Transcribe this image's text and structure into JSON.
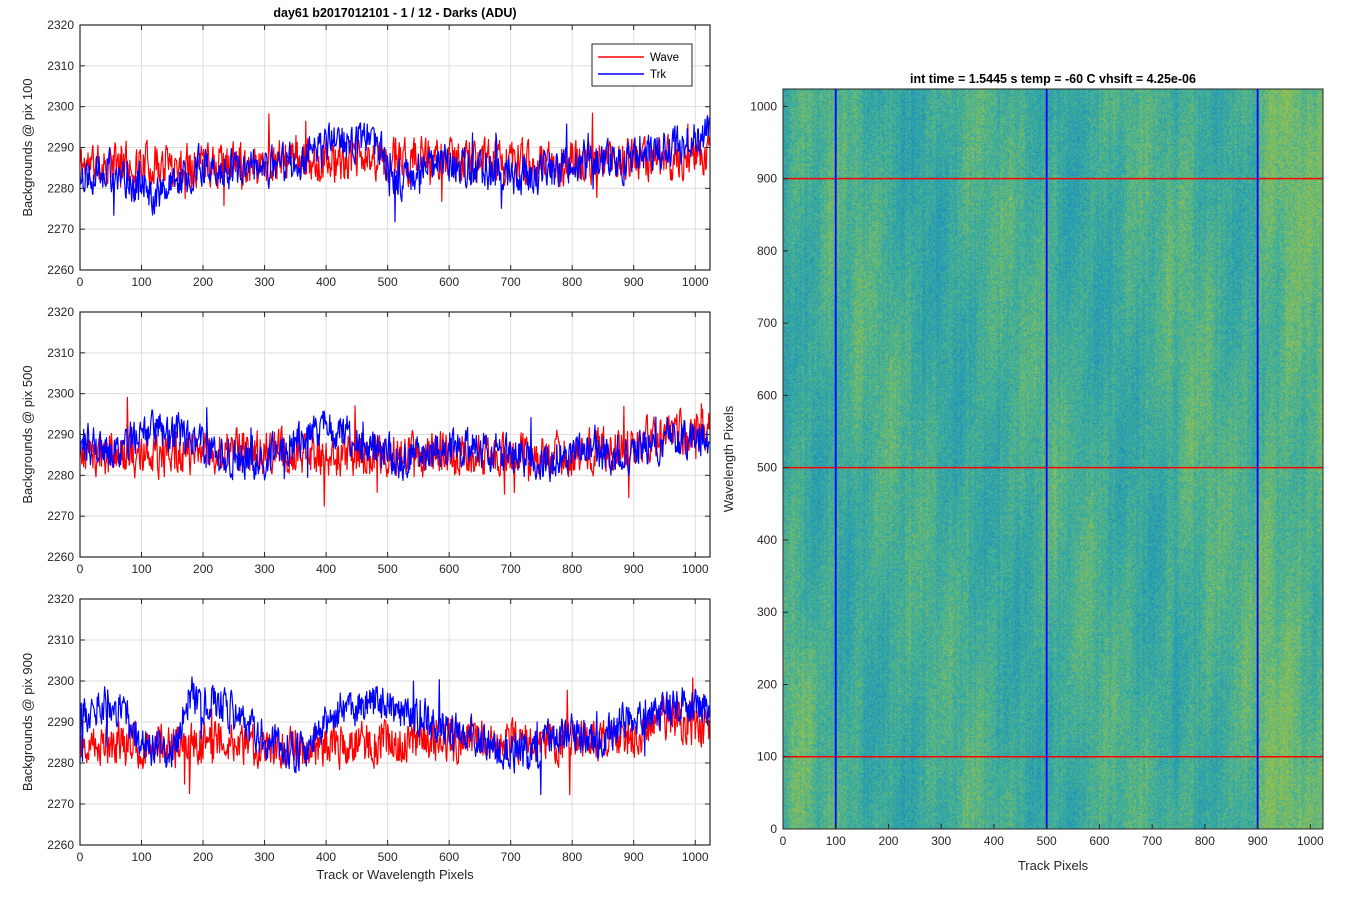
{
  "chart_data": [
    {
      "type": "line",
      "id": "p100",
      "title": "day61 b2017012101 - 1 / 12 - Darks (ADU)",
      "ylabel": "Backgrounds @ pix 100",
      "xlabel": "",
      "xlim": [
        0,
        1024
      ],
      "ylim": [
        2260,
        2320
      ],
      "xticks": [
        0,
        100,
        200,
        300,
        400,
        500,
        600,
        700,
        800,
        900,
        1000
      ],
      "yticks": [
        2260,
        2270,
        2280,
        2290,
        2300,
        2310,
        2320
      ],
      "xtick_labels": [
        "0",
        "100",
        "200",
        "300",
        "400",
        "500",
        "600",
        "700",
        "800",
        "900",
        "1000"
      ],
      "ytick_labels": [
        "2260",
        "2270",
        "2280",
        "2290",
        "2300",
        "2310",
        "2320"
      ],
      "grid": true,
      "legend": {
        "placement": "top-right",
        "entries": [
          "Wave",
          "Trk"
        ]
      },
      "series": [
        {
          "name": "Wave",
          "color": "#ff0000",
          "base": [
            [
              0,
              2286
            ],
            [
              128,
              2286
            ],
            [
              256,
              2286
            ],
            [
              384,
              2287
            ],
            [
              512,
              2287
            ],
            [
              640,
              2287
            ],
            [
              768,
              2286
            ],
            [
              896,
              2287
            ],
            [
              1024,
              2288
            ]
          ],
          "noise": 5.5,
          "seed": 11
        },
        {
          "name": "Trk",
          "color": "#0000ff",
          "base": [
            [
              0,
              2283
            ],
            [
              40,
              2285
            ],
            [
              80,
              2282
            ],
            [
              120,
              2279
            ],
            [
              150,
              2280
            ],
            [
              200,
              2286
            ],
            [
              260,
              2284
            ],
            [
              300,
              2285
            ],
            [
              360,
              2287
            ],
            [
              420,
              2292
            ],
            [
              480,
              2291
            ],
            [
              520,
              2282
            ],
            [
              560,
              2285
            ],
            [
              600,
              2286
            ],
            [
              650,
              2284
            ],
            [
              700,
              2283
            ],
            [
              760,
              2284
            ],
            [
              820,
              2287
            ],
            [
              880,
              2286
            ],
            [
              960,
              2290
            ],
            [
              1024,
              2293
            ]
          ],
          "noise": 5,
          "seed": 22
        }
      ]
    },
    {
      "type": "line",
      "id": "p500",
      "title": "",
      "ylabel": "Backgrounds @ pix 500",
      "xlabel": "",
      "xlim": [
        0,
        1024
      ],
      "ylim": [
        2260,
        2320
      ],
      "xticks": [
        0,
        100,
        200,
        300,
        400,
        500,
        600,
        700,
        800,
        900,
        1000
      ],
      "yticks": [
        2260,
        2270,
        2280,
        2290,
        2300,
        2310,
        2320
      ],
      "xtick_labels": [
        "0",
        "100",
        "200",
        "300",
        "400",
        "500",
        "600",
        "700",
        "800",
        "900",
        "1000"
      ],
      "ytick_labels": [
        "2260",
        "2270",
        "2280",
        "2290",
        "2300",
        "2310",
        "2320"
      ],
      "grid": true,
      "series": [
        {
          "name": "Wave",
          "color": "#ff0000",
          "base": [
            [
              0,
              2285
            ],
            [
              128,
              2285
            ],
            [
              256,
              2286
            ],
            [
              384,
              2285
            ],
            [
              512,
              2285
            ],
            [
              640,
              2285
            ],
            [
              768,
              2285
            ],
            [
              896,
              2287
            ],
            [
              960,
              2291
            ],
            [
              1024,
              2290
            ]
          ],
          "noise": 5.5,
          "seed": 33
        },
        {
          "name": "Trk",
          "color": "#0000ff",
          "base": [
            [
              0,
              2288
            ],
            [
              60,
              2286
            ],
            [
              100,
              2291
            ],
            [
              160,
              2290
            ],
            [
              220,
              2285
            ],
            [
              280,
              2283
            ],
            [
              340,
              2287
            ],
            [
              400,
              2292
            ],
            [
              460,
              2288
            ],
            [
              520,
              2284
            ],
            [
              580,
              2286
            ],
            [
              640,
              2287
            ],
            [
              700,
              2285
            ],
            [
              760,
              2283
            ],
            [
              820,
              2286
            ],
            [
              880,
              2285
            ],
            [
              960,
              2289
            ],
            [
              1024,
              2289
            ]
          ],
          "noise": 5,
          "seed": 44
        }
      ]
    },
    {
      "type": "line",
      "id": "p900",
      "title": "",
      "ylabel": "Backgrounds @ pix 900",
      "xlabel": "Track or Wavelength Pixels",
      "xlim": [
        0,
        1024
      ],
      "ylim": [
        2260,
        2320
      ],
      "xticks": [
        0,
        100,
        200,
        300,
        400,
        500,
        600,
        700,
        800,
        900,
        1000
      ],
      "yticks": [
        2260,
        2270,
        2280,
        2290,
        2300,
        2310,
        2320
      ],
      "xtick_labels": [
        "0",
        "100",
        "200",
        "300",
        "400",
        "500",
        "600",
        "700",
        "800",
        "900",
        "1000"
      ],
      "ytick_labels": [
        "2260",
        "2270",
        "2280",
        "2290",
        "2300",
        "2310",
        "2320"
      ],
      "grid": true,
      "series": [
        {
          "name": "Wave",
          "color": "#ff0000",
          "base": [
            [
              0,
              2285
            ],
            [
              128,
              2284
            ],
            [
              256,
              2285
            ],
            [
              384,
              2284
            ],
            [
              512,
              2285
            ],
            [
              640,
              2286
            ],
            [
              768,
              2285
            ],
            [
              896,
              2286
            ],
            [
              960,
              2292
            ],
            [
              1024,
              2287
            ]
          ],
          "noise": 5.5,
          "seed": 55
        },
        {
          "name": "Trk",
          "color": "#0000ff",
          "base": [
            [
              0,
              2291
            ],
            [
              50,
              2296
            ],
            [
              100,
              2285
            ],
            [
              150,
              2282
            ],
            [
              180,
              2297
            ],
            [
              240,
              2293
            ],
            [
              300,
              2286
            ],
            [
              360,
              2283
            ],
            [
              420,
              2293
            ],
            [
              480,
              2295
            ],
            [
              540,
              2292
            ],
            [
              600,
              2288
            ],
            [
              660,
              2284
            ],
            [
              720,
              2282
            ],
            [
              780,
              2287
            ],
            [
              840,
              2286
            ],
            [
              900,
              2291
            ],
            [
              960,
              2294
            ],
            [
              1024,
              2293
            ]
          ],
          "noise": 5,
          "seed": 66
        }
      ]
    },
    {
      "type": "heatmap",
      "id": "image",
      "title": "int time = 1.5445 s    temp = -60 C    vhsift = 4.25e-06",
      "xlabel": "Track Pixels",
      "ylabel": "Wavelength Pixels",
      "xlim": [
        0,
        1024
      ],
      "ylim": [
        0,
        1024
      ],
      "xticks": [
        0,
        100,
        200,
        300,
        400,
        500,
        600,
        700,
        800,
        900,
        1000
      ],
      "yticks": [
        0,
        100,
        200,
        300,
        400,
        500,
        600,
        700,
        800,
        900,
        1000
      ],
      "xtick_labels": [
        "0",
        "100",
        "200",
        "300",
        "400",
        "500",
        "600",
        "700",
        "800",
        "900",
        "1000"
      ],
      "ytick_labels": [
        "0",
        "100",
        "200",
        "300",
        "400",
        "500",
        "600",
        "700",
        "800",
        "900",
        "1000"
      ],
      "colormap": "parula",
      "colors": {
        "base": "#3aaf9f",
        "dark": "#1f8fba",
        "bright": "#9ec247"
      },
      "vertical_lines": {
        "x": [
          100,
          500,
          900
        ],
        "color": "#0000ff"
      },
      "horizontal_lines": {
        "y": [
          100,
          500,
          900
        ],
        "color": "#ff0000"
      }
    }
  ]
}
